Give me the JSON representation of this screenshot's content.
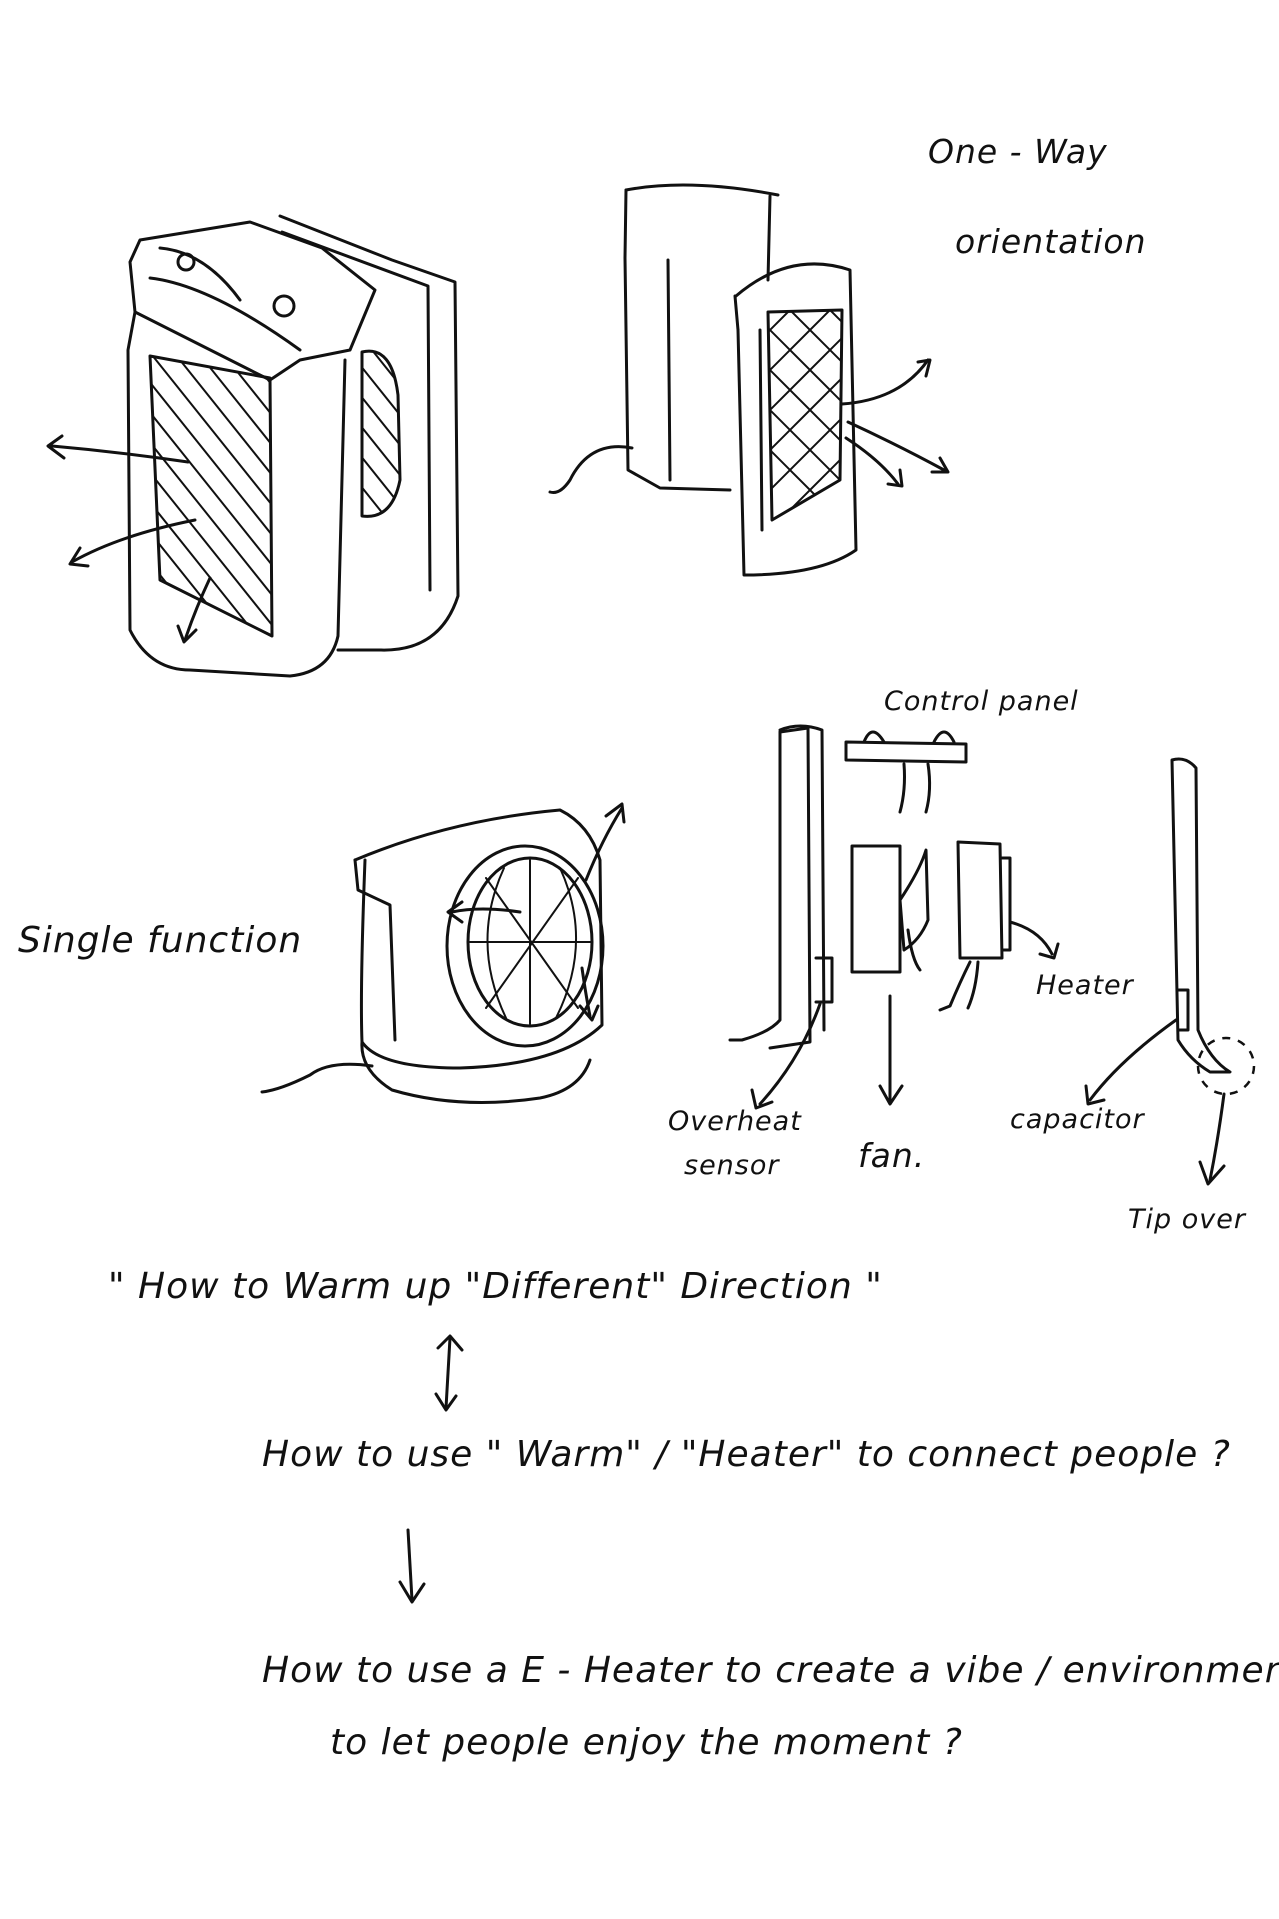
{
  "labels": {
    "one_way": "One - Way",
    "orientation": "orientation",
    "control_panel": "Control panel",
    "single_function": "Single function",
    "heater": "Heater",
    "overheat_sensor_line1": "Overheat",
    "overheat_sensor_line2": "sensor",
    "fan": "fan.",
    "capacitor": "capacitor",
    "tip_over": "Tip over"
  },
  "questions": {
    "q1": "\" How to Warm up \"Different\" Direction \"",
    "q2": "How to use \" Warm\" / \"Heater\" to connect people ?",
    "q3_line1": "How to use a E - Heater to create a vibe / environment",
    "q3_line2": "to let people enjoy the moment ?"
  },
  "colors": {
    "ink": "#111111",
    "paper": "#ffffff"
  }
}
